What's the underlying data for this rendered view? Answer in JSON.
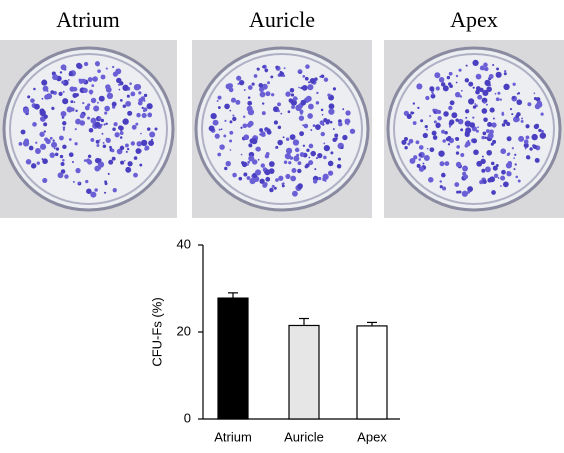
{
  "photos": {
    "labels": [
      "Atrium",
      "Auricle",
      "Apex"
    ]
  },
  "chart_data": {
    "type": "bar",
    "y_label": "CFU-Fs (%)",
    "categories": [
      "Atrium",
      "Auricle",
      "Apex"
    ],
    "values": [
      27.8,
      21.5,
      21.4
    ],
    "errors": [
      1.2,
      1.6,
      0.8
    ],
    "colors": [
      "#000000",
      "#e6e6e6",
      "#ffffff"
    ],
    "ylim": [
      0,
      40
    ],
    "yticks": [
      0,
      20,
      40
    ],
    "grid": false
  }
}
